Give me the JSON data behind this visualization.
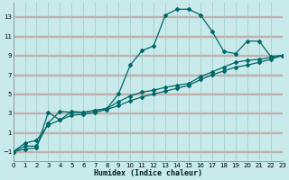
{
  "xlabel": "Humidex (Indice chaleur)",
  "bg_color": "#c8eaea",
  "grid_color_v": "#a0c8c8",
  "grid_color_h": "#d8b0b0",
  "line_color": "#006868",
  "x_min": 0,
  "x_max": 23,
  "y_min": -2,
  "y_max": 14.5,
  "yticks": [
    -1,
    1,
    3,
    5,
    7,
    9,
    11,
    13
  ],
  "xticks": [
    0,
    1,
    2,
    3,
    4,
    5,
    6,
    7,
    8,
    9,
    10,
    11,
    12,
    13,
    14,
    15,
    16,
    17,
    18,
    19,
    20,
    21,
    22,
    23
  ],
  "line1_x": [
    0,
    1,
    2,
    3,
    4,
    5,
    6,
    7,
    8,
    9,
    10,
    11,
    12,
    13,
    14,
    15,
    16,
    17,
    18,
    19,
    20,
    21,
    22,
    23
  ],
  "line1_y": [
    -1.0,
    -0.7,
    -0.6,
    3.1,
    2.3,
    3.2,
    3.1,
    3.3,
    3.5,
    5.0,
    8.0,
    9.5,
    10.0,
    13.2,
    13.8,
    13.8,
    13.2,
    11.5,
    9.4,
    9.2,
    10.5,
    10.5,
    8.9,
    9.0
  ],
  "line2_x": [
    0,
    1,
    2,
    3,
    4,
    5,
    6,
    7,
    8,
    9,
    10,
    11,
    12,
    13,
    14,
    15,
    16,
    17,
    18,
    19,
    20,
    21,
    22,
    23
  ],
  "line2_y": [
    -1.0,
    -0.4,
    -0.4,
    2.0,
    3.2,
    3.1,
    3.1,
    3.3,
    3.5,
    4.2,
    4.8,
    5.2,
    5.4,
    5.7,
    5.9,
    6.1,
    6.8,
    7.3,
    7.8,
    8.3,
    8.5,
    8.6,
    8.8,
    9.0
  ],
  "line3_x": [
    0,
    1,
    2,
    3,
    4,
    5,
    6,
    7,
    8,
    9,
    10,
    11,
    12,
    13,
    14,
    15,
    16,
    17,
    18,
    19,
    20,
    21,
    22,
    23
  ],
  "line3_y": [
    -1.0,
    -0.1,
    0.2,
    1.8,
    2.3,
    2.8,
    2.9,
    3.1,
    3.4,
    3.8,
    4.3,
    4.7,
    5.0,
    5.3,
    5.6,
    5.9,
    6.5,
    7.0,
    7.4,
    7.8,
    8.0,
    8.3,
    8.6,
    9.0
  ]
}
